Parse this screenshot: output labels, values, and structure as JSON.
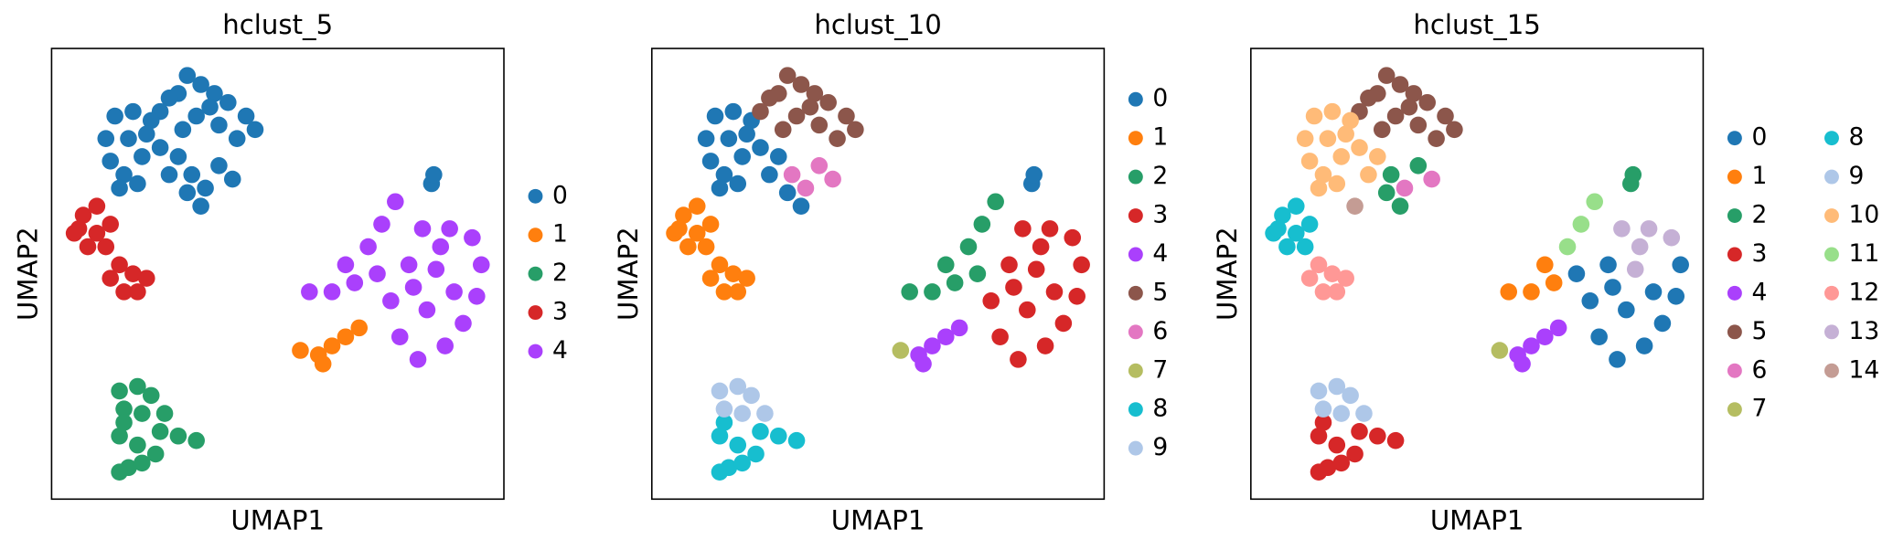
{
  "chart_data": [
    {
      "type": "scatter",
      "title": "hclust_5",
      "x_label": "UMAP1",
      "y_label": "UMAP2",
      "xlim": [
        0,
        10
      ],
      "ylim": [
        0,
        10
      ],
      "legend": "right",
      "legend_columns": 1,
      "series": [
        {
          "name": "0",
          "color": "#1f77b4",
          "x": [
            2.4,
            2.8,
            3.0,
            3.3,
            3.6,
            3.9,
            4.3,
            4.5,
            3.2,
            3.7,
            2.9,
            4.1,
            3.5,
            2.6,
            1.2,
            1.4,
            1.8,
            2.2,
            1.3,
            1.6,
            2.0,
            2.4,
            1.5,
            1.9,
            1.7,
            2.1,
            2.8,
            3.1,
            3.4,
            3.3,
            3.7,
            4.0,
            2.6,
            3.0,
            8.4,
            8.45
          ],
          "y": [
            8.6,
            9.0,
            9.4,
            9.2,
            9.0,
            8.8,
            8.5,
            8.2,
            8.5,
            8.3,
            8.2,
            8.0,
            8.7,
            8.9,
            8.0,
            8.5,
            8.6,
            8.4,
            7.5,
            7.2,
            7.6,
            7.8,
            6.9,
            7.0,
            8.0,
            8.1,
            7.6,
            7.2,
            6.9,
            6.5,
            7.4,
            7.1,
            7.2,
            6.8,
            7.0,
            7.2
          ]
        },
        {
          "name": "1",
          "color": "#ff7f0e",
          "x": [
            5.5,
            5.9,
            6.2,
            6.5,
            6.8,
            6.0
          ],
          "y": [
            3.3,
            3.2,
            3.4,
            3.6,
            3.8,
            3.0
          ]
        },
        {
          "name": "2",
          "color": "#279e68",
          "x": [
            1.5,
            1.9,
            2.2,
            1.6,
            2.0,
            2.5,
            2.8,
            3.2,
            1.5,
            1.9,
            2.3,
            1.7,
            1.5,
            2.4,
            2.0,
            1.6
          ],
          "y": [
            2.4,
            2.5,
            2.3,
            2.0,
            1.9,
            1.9,
            1.4,
            1.3,
            1.4,
            1.2,
            1.0,
            0.7,
            0.6,
            1.5,
            0.8,
            1.7
          ]
        },
        {
          "name": "3",
          "color": "#d62728",
          "x": [
            0.5,
            0.7,
            1.0,
            1.3,
            0.8,
            1.2,
            1.5,
            1.8,
            2.1,
            1.6,
            1.3,
            1.9,
            0.6,
            1.0
          ],
          "y": [
            5.9,
            6.3,
            6.5,
            6.1,
            5.6,
            5.6,
            5.2,
            5.0,
            4.9,
            4.6,
            4.9,
            4.6,
            6.0,
            5.9
          ]
        },
        {
          "name": "4",
          "color": "#aa40fc",
          "x": [
            7.6,
            7.3,
            8.2,
            8.8,
            9.3,
            9.5,
            9.4,
            9.1,
            8.7,
            8.1,
            7.7,
            7.5,
            7.9,
            8.5,
            8.9,
            8.3,
            8.6,
            7.2,
            6.7,
            6.2,
            5.7,
            6.5,
            7.0,
            8.0
          ],
          "y": [
            6.6,
            6.1,
            6.0,
            6.0,
            5.8,
            5.2,
            4.5,
            3.9,
            3.4,
            3.1,
            3.6,
            4.4,
            5.2,
            5.1,
            4.6,
            4.2,
            5.6,
            5.0,
            4.8,
            4.6,
            4.6,
            5.2,
            5.6,
            4.7
          ]
        }
      ]
    },
    {
      "type": "scatter",
      "title": "hclust_10",
      "x_label": "UMAP1",
      "y_label": "UMAP2",
      "xlim": [
        0,
        10
      ],
      "ylim": [
        0,
        10
      ],
      "legend": "right",
      "legend_columns": 1,
      "series": [
        {
          "name": "0",
          "color": "#1f77b4",
          "x": [
            1.2,
            1.4,
            1.8,
            2.2,
            1.3,
            1.6,
            2.0,
            2.4,
            1.5,
            1.9,
            1.7,
            2.1,
            2.8,
            2.6,
            3.0,
            3.3,
            8.4,
            8.45
          ],
          "y": [
            8.0,
            8.5,
            8.6,
            8.4,
            7.5,
            7.2,
            7.6,
            7.8,
            6.9,
            7.0,
            8.0,
            8.1,
            7.6,
            7.2,
            6.8,
            6.5,
            7.0,
            7.2
          ]
        },
        {
          "name": "1",
          "color": "#ff7f0e",
          "x": [
            0.5,
            0.7,
            1.0,
            1.3,
            0.8,
            1.2,
            1.5,
            1.8,
            2.1,
            1.6,
            1.3,
            1.9,
            0.6,
            1.0
          ],
          "y": [
            5.9,
            6.3,
            6.5,
            6.1,
            5.6,
            5.6,
            5.2,
            5.0,
            4.9,
            4.6,
            4.9,
            4.6,
            6.0,
            5.9
          ]
        },
        {
          "name": "2",
          "color": "#279e68",
          "x": [
            7.2,
            6.7,
            6.2,
            5.7,
            6.5,
            7.0,
            7.6,
            7.3
          ],
          "y": [
            5.0,
            4.8,
            4.6,
            4.6,
            5.2,
            5.6,
            6.6,
            6.1
          ]
        },
        {
          "name": "3",
          "color": "#d62728",
          "x": [
            8.2,
            8.8,
            9.3,
            9.5,
            9.4,
            9.1,
            8.7,
            8.1,
            7.7,
            7.5,
            7.9,
            8.5,
            8.9,
            8.3,
            8.6,
            8.0
          ],
          "y": [
            6.0,
            6.0,
            5.8,
            5.2,
            4.5,
            3.9,
            3.4,
            3.1,
            3.6,
            4.4,
            5.2,
            5.1,
            4.6,
            4.2,
            5.6,
            4.7
          ]
        },
        {
          "name": "4",
          "color": "#aa40fc",
          "x": [
            5.9,
            6.2,
            6.5,
            6.8,
            6.0
          ],
          "y": [
            3.2,
            3.4,
            3.6,
            3.8,
            3.0
          ]
        },
        {
          "name": "5",
          "color": "#8c564b",
          "x": [
            2.4,
            2.8,
            3.0,
            3.3,
            3.6,
            3.9,
            4.3,
            4.5,
            3.2,
            3.7,
            2.9,
            4.1,
            3.5,
            2.6
          ],
          "y": [
            8.6,
            9.0,
            9.4,
            9.2,
            9.0,
            8.8,
            8.5,
            8.2,
            8.5,
            8.3,
            8.2,
            8.0,
            8.7,
            8.9
          ]
        },
        {
          "name": "6",
          "color": "#e377c2",
          "x": [
            3.1,
            3.7,
            4.0,
            3.4
          ],
          "y": [
            7.2,
            7.4,
            7.1,
            6.9
          ]
        },
        {
          "name": "7",
          "color": "#b5bd61",
          "x": [
            5.5
          ],
          "y": [
            3.3
          ]
        },
        {
          "name": "8",
          "color": "#17becf",
          "x": [
            2.8,
            3.2,
            1.5,
            1.9,
            2.3,
            1.7,
            1.5,
            2.4,
            2.0,
            1.6
          ],
          "y": [
            1.4,
            1.3,
            1.4,
            1.2,
            1.0,
            0.7,
            0.6,
            1.5,
            0.8,
            1.7
          ]
        },
        {
          "name": "9",
          "color": "#aec7e8",
          "x": [
            1.5,
            1.9,
            2.2,
            1.6,
            2.0,
            2.5
          ],
          "y": [
            2.4,
            2.5,
            2.3,
            2.0,
            1.9,
            1.9
          ]
        }
      ]
    },
    {
      "type": "scatter",
      "title": "hclust_15",
      "x_label": "UMAP1",
      "y_label": "UMAP2",
      "xlim": [
        0,
        10
      ],
      "ylim": [
        0,
        10
      ],
      "legend": "right",
      "legend_columns": 2,
      "series": [
        {
          "name": "0",
          "color": "#1f77b4",
          "x": [
            9.5,
            9.4,
            9.1,
            8.7,
            8.1,
            7.7,
            7.5,
            7.9,
            8.9,
            8.3,
            7.2,
            8.0
          ],
          "y": [
            5.2,
            4.5,
            3.9,
            3.4,
            3.1,
            3.6,
            4.4,
            5.2,
            4.6,
            4.2,
            5.0,
            4.7
          ]
        },
        {
          "name": "1",
          "color": "#ff7f0e",
          "x": [
            6.2,
            5.7,
            6.5,
            6.7
          ],
          "y": [
            4.6,
            4.6,
            5.2,
            4.8
          ]
        },
        {
          "name": "2",
          "color": "#279e68",
          "x": [
            3.1,
            3.7,
            3.3,
            3.0,
            8.4,
            8.45
          ],
          "y": [
            7.2,
            7.4,
            6.5,
            6.8,
            7.0,
            7.2
          ]
        },
        {
          "name": "3",
          "color": "#d62728",
          "x": [
            2.8,
            3.2,
            1.5,
            1.9,
            2.3,
            1.7,
            1.5,
            2.4,
            2.0,
            1.6
          ],
          "y": [
            1.4,
            1.3,
            1.4,
            1.2,
            1.0,
            0.7,
            0.6,
            1.5,
            0.8,
            1.7
          ]
        },
        {
          "name": "4",
          "color": "#aa40fc",
          "x": [
            5.9,
            6.2,
            6.5,
            6.8,
            6.0
          ],
          "y": [
            3.2,
            3.4,
            3.6,
            3.8,
            3.0
          ]
        },
        {
          "name": "5",
          "color": "#8c564b",
          "x": [
            2.4,
            2.8,
            3.0,
            3.3,
            3.6,
            3.9,
            4.3,
            4.5,
            3.2,
            3.7,
            2.9,
            4.1,
            3.5,
            2.6
          ],
          "y": [
            8.6,
            9.0,
            9.4,
            9.2,
            9.0,
            8.8,
            8.5,
            8.2,
            8.5,
            8.3,
            8.2,
            8.0,
            8.7,
            8.9
          ]
        },
        {
          "name": "6",
          "color": "#e377c2",
          "x": [
            4.0,
            3.4
          ],
          "y": [
            7.1,
            6.9
          ]
        },
        {
          "name": "7",
          "color": "#b5bd61",
          "x": [
            5.5
          ],
          "y": [
            3.3
          ]
        },
        {
          "name": "8",
          "color": "#17becf",
          "x": [
            0.5,
            0.7,
            1.0,
            1.3,
            0.8,
            1.2,
            0.6,
            1.0
          ],
          "y": [
            5.9,
            6.3,
            6.5,
            6.1,
            5.6,
            5.6,
            6.0,
            5.9
          ]
        },
        {
          "name": "9",
          "color": "#aec7e8",
          "x": [
            1.5,
            1.9,
            2.2,
            1.6,
            2.0,
            2.5
          ],
          "y": [
            2.4,
            2.5,
            2.3,
            2.0,
            1.9,
            1.9
          ]
        },
        {
          "name": "10",
          "color": "#ffbb78",
          "x": [
            1.2,
            1.4,
            1.8,
            2.2,
            1.3,
            1.6,
            2.0,
            2.4,
            1.5,
            1.9,
            1.7,
            2.1,
            2.8,
            2.6
          ],
          "y": [
            8.0,
            8.5,
            8.6,
            8.4,
            7.5,
            7.2,
            7.6,
            7.8,
            6.9,
            7.0,
            8.0,
            8.1,
            7.6,
            7.2
          ]
        },
        {
          "name": "11",
          "color": "#98df8a",
          "x": [
            7.6,
            7.3,
            7.0
          ],
          "y": [
            6.6,
            6.1,
            5.6
          ]
        },
        {
          "name": "12",
          "color": "#ff9896",
          "x": [
            1.5,
            1.8,
            2.1,
            1.6,
            1.3,
            1.9
          ],
          "y": [
            5.2,
            5.0,
            4.9,
            4.6,
            4.9,
            4.6
          ]
        },
        {
          "name": "13",
          "color": "#c5b0d5",
          "x": [
            8.2,
            8.8,
            9.3,
            8.6,
            8.5
          ],
          "y": [
            6.0,
            6.0,
            5.8,
            5.6,
            5.1
          ]
        },
        {
          "name": "14",
          "color": "#c49c94",
          "x": [
            2.3
          ],
          "y": [
            6.5
          ]
        }
      ]
    }
  ]
}
